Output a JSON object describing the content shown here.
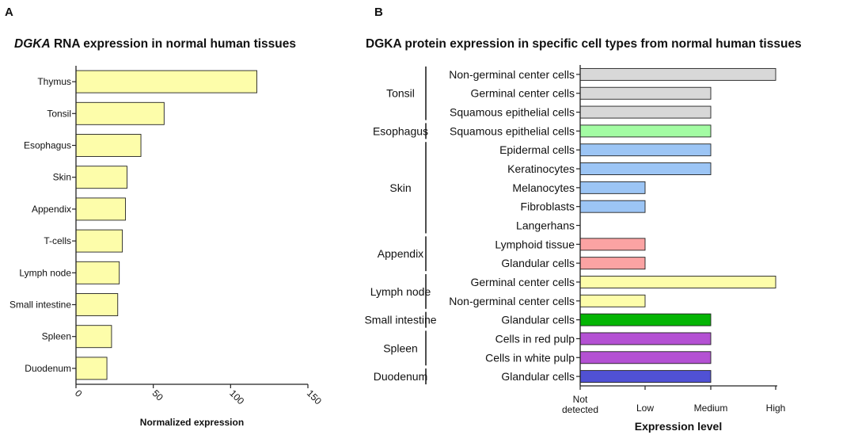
{
  "panels": {
    "a_letter": "A",
    "b_letter": "B"
  },
  "chart_data": [
    {
      "type": "bar",
      "orientation": "horizontal",
      "title_italic": "DGKA",
      "title_rest": " RNA expression in normal human tissues",
      "categories": [
        "Thymus",
        "Tonsil",
        "Esophagus",
        "Skin",
        "Appendix",
        "T-cells",
        "Lymph node",
        "Small intestine",
        "Spleen",
        "Duodenum"
      ],
      "values": [
        117,
        57,
        42,
        33,
        32,
        30,
        28,
        27,
        23,
        20
      ],
      "xlabel": "Normalized expression",
      "xlim": [
        0,
        150
      ],
      "xticks": [
        "0",
        "50",
        "100",
        "150"
      ],
      "bar_color": "#fdfdaa",
      "grid": false
    },
    {
      "type": "bar",
      "orientation": "horizontal",
      "title": "DGKA protein expression in specific cell types from normal human tissues",
      "xlabel": "Expression level",
      "levels": [
        "Not detected",
        "Low",
        "Medium",
        "High"
      ],
      "level_labels": [
        [
          "Not",
          "detected"
        ],
        [
          "Low"
        ],
        [
          "Medium"
        ],
        [
          "High"
        ]
      ],
      "groups": [
        {
          "name": "Tonsil",
          "color": "#d8d8d8",
          "cells": [
            {
              "label": "Non-germinal center cells",
              "value": 3
            },
            {
              "label": "Germinal center cells",
              "value": 2
            },
            {
              "label": "Squamous epithelial cells",
              "value": 2
            }
          ]
        },
        {
          "name": "Esophagus",
          "color": "#a3fca3",
          "cells": [
            {
              "label": "Squamous epithelial cells",
              "value": 2
            }
          ]
        },
        {
          "name": "Skin",
          "color": "#9cc5f5",
          "cells": [
            {
              "label": "Epidermal cells",
              "value": 2
            },
            {
              "label": "Keratinocytes",
              "value": 2
            },
            {
              "label": "Melanocytes",
              "value": 1
            },
            {
              "label": "Fibroblasts",
              "value": 1
            },
            {
              "label": "Langerhans",
              "value": 0
            }
          ]
        },
        {
          "name": "Appendix",
          "color": "#fba3a3",
          "cells": [
            {
              "label": "Lymphoid tissue",
              "value": 1
            },
            {
              "label": "Glandular cells",
              "value": 1
            }
          ]
        },
        {
          "name": "Lymph node",
          "color": "#fdfdaa",
          "cells": [
            {
              "label": "Germinal center cells",
              "value": 3
            },
            {
              "label": "Non-germinal center cells",
              "value": 1
            }
          ]
        },
        {
          "name": "Small intestine",
          "color": "#05b505",
          "cells": [
            {
              "label": "Glandular cells",
              "value": 2
            }
          ]
        },
        {
          "name": "Spleen",
          "color": "#b451d3",
          "cells": [
            {
              "label": "Cells in red pulp",
              "value": 2
            },
            {
              "label": "Cells in white pulp",
              "value": 2
            }
          ]
        },
        {
          "name": "Duodenum",
          "color": "#5051d4",
          "cells": [
            {
              "label": "Glandular cells",
              "value": 2
            }
          ]
        }
      ]
    }
  ]
}
